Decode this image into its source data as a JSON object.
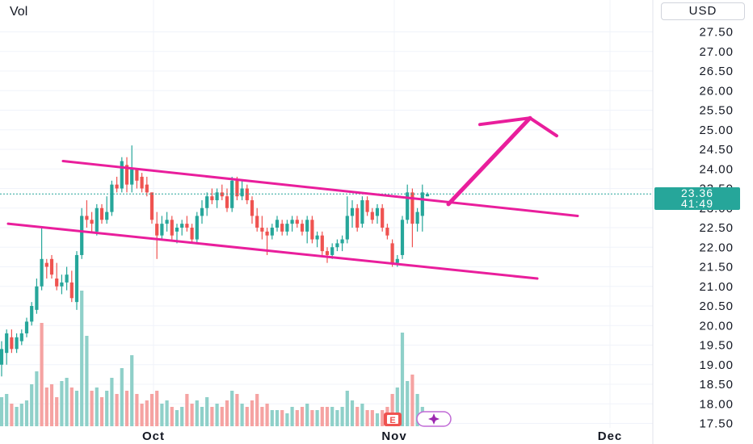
{
  "header": {
    "volume_label": "Vol",
    "currency": "USD"
  },
  "price_badge": {
    "price": "23.36",
    "countdown": "41:49"
  },
  "events": {
    "earnings_label": "E",
    "dividend_icon": "sparkle-icon"
  },
  "colors": {
    "up": "#26a69a",
    "down": "#ef5350",
    "vol_up": "#8fd0c9",
    "vol_down": "#f5a3a2",
    "channel": "#e91e9c",
    "grid": "#f0f3fa",
    "last_price_line": "#26a69a"
  },
  "chart_data": {
    "type": "candlestick",
    "ylim": [
      17.4,
      27.9
    ],
    "y_ticks": [
      "27.50",
      "27.00",
      "26.50",
      "26.00",
      "25.50",
      "25.00",
      "24.50",
      "24.00",
      "23.50",
      "23.00",
      "22.50",
      "22.00",
      "21.50",
      "21.00",
      "20.50",
      "20.00",
      "19.50",
      "19.00",
      "18.50",
      "18.00",
      "17.50"
    ],
    "x_ticks": [
      "Oct",
      "Nov",
      "Dec"
    ],
    "last_price": 23.36,
    "candles": [
      {
        "o": 19.0,
        "h": 19.6,
        "l": 18.7,
        "c": 19.4
      },
      {
        "o": 19.3,
        "h": 19.9,
        "l": 19.0,
        "c": 19.8
      },
      {
        "o": 19.7,
        "h": 19.9,
        "l": 19.3,
        "c": 19.4
      },
      {
        "o": 19.4,
        "h": 19.8,
        "l": 19.3,
        "c": 19.7
      },
      {
        "o": 19.6,
        "h": 19.9,
        "l": 19.5,
        "c": 19.8
      },
      {
        "o": 19.8,
        "h": 20.2,
        "l": 19.7,
        "c": 20.1
      },
      {
        "o": 20.1,
        "h": 20.6,
        "l": 20.0,
        "c": 20.5
      },
      {
        "o": 20.4,
        "h": 21.2,
        "l": 20.3,
        "c": 21.0
      },
      {
        "o": 21.0,
        "h": 22.5,
        "l": 20.9,
        "c": 21.7
      },
      {
        "o": 21.6,
        "h": 21.7,
        "l": 21.2,
        "c": 21.5
      },
      {
        "o": 21.7,
        "h": 21.8,
        "l": 21.2,
        "c": 21.3
      },
      {
        "o": 21.2,
        "h": 21.6,
        "l": 20.9,
        "c": 21.0
      },
      {
        "o": 21.0,
        "h": 21.3,
        "l": 20.8,
        "c": 21.1
      },
      {
        "o": 21.1,
        "h": 21.5,
        "l": 20.9,
        "c": 21.3
      },
      {
        "o": 21.1,
        "h": 21.4,
        "l": 20.6,
        "c": 20.7
      },
      {
        "o": 20.6,
        "h": 21.9,
        "l": 20.4,
        "c": 21.8
      },
      {
        "o": 21.8,
        "h": 23.0,
        "l": 21.7,
        "c": 22.8
      },
      {
        "o": 22.8,
        "h": 23.2,
        "l": 22.5,
        "c": 22.7
      },
      {
        "o": 22.7,
        "h": 22.9,
        "l": 22.4,
        "c": 22.6
      },
      {
        "o": 22.4,
        "h": 23.1,
        "l": 22.3,
        "c": 23.0
      },
      {
        "o": 23.0,
        "h": 23.1,
        "l": 22.6,
        "c": 22.7
      },
      {
        "o": 22.7,
        "h": 23.3,
        "l": 22.6,
        "c": 22.9
      },
      {
        "o": 22.9,
        "h": 23.7,
        "l": 22.8,
        "c": 23.6
      },
      {
        "o": 23.6,
        "h": 23.8,
        "l": 23.4,
        "c": 23.5
      },
      {
        "o": 23.5,
        "h": 24.3,
        "l": 23.4,
        "c": 24.2
      },
      {
        "o": 24.1,
        "h": 24.3,
        "l": 23.4,
        "c": 23.6
      },
      {
        "o": 23.6,
        "h": 24.6,
        "l": 23.4,
        "c": 24.0
      },
      {
        "o": 24.0,
        "h": 24.0,
        "l": 23.5,
        "c": 23.7
      },
      {
        "o": 23.8,
        "h": 23.9,
        "l": 23.4,
        "c": 23.5
      },
      {
        "o": 23.6,
        "h": 23.8,
        "l": 23.3,
        "c": 23.4
      },
      {
        "o": 23.4,
        "h": 23.4,
        "l": 22.6,
        "c": 22.7
      },
      {
        "o": 22.6,
        "h": 22.9,
        "l": 21.7,
        "c": 22.3
      },
      {
        "o": 22.3,
        "h": 22.8,
        "l": 22.2,
        "c": 22.6
      },
      {
        "o": 22.6,
        "h": 22.9,
        "l": 22.4,
        "c": 22.7
      },
      {
        "o": 22.7,
        "h": 22.8,
        "l": 22.2,
        "c": 22.3
      },
      {
        "o": 22.4,
        "h": 22.6,
        "l": 22.1,
        "c": 22.5
      },
      {
        "o": 22.5,
        "h": 22.7,
        "l": 22.3,
        "c": 22.6
      },
      {
        "o": 22.6,
        "h": 22.8,
        "l": 22.4,
        "c": 22.5
      },
      {
        "o": 22.5,
        "h": 22.6,
        "l": 22.1,
        "c": 22.2
      },
      {
        "o": 22.2,
        "h": 22.9,
        "l": 22.1,
        "c": 22.8
      },
      {
        "o": 22.8,
        "h": 23.2,
        "l": 22.6,
        "c": 23.0
      },
      {
        "o": 23.0,
        "h": 23.4,
        "l": 22.8,
        "c": 23.3
      },
      {
        "o": 23.3,
        "h": 23.5,
        "l": 23.1,
        "c": 23.2
      },
      {
        "o": 23.2,
        "h": 23.5,
        "l": 23.0,
        "c": 23.4
      },
      {
        "o": 23.4,
        "h": 23.6,
        "l": 23.2,
        "c": 23.3
      },
      {
        "o": 23.3,
        "h": 23.5,
        "l": 22.9,
        "c": 23.0
      },
      {
        "o": 23.0,
        "h": 23.8,
        "l": 22.9,
        "c": 23.7
      },
      {
        "o": 23.7,
        "h": 23.8,
        "l": 23.2,
        "c": 23.3
      },
      {
        "o": 23.3,
        "h": 23.7,
        "l": 23.2,
        "c": 23.5
      },
      {
        "o": 23.5,
        "h": 23.6,
        "l": 23.1,
        "c": 23.2
      },
      {
        "o": 23.2,
        "h": 23.3,
        "l": 22.6,
        "c": 22.8
      },
      {
        "o": 22.8,
        "h": 23.0,
        "l": 22.4,
        "c": 22.5
      },
      {
        "o": 22.5,
        "h": 22.8,
        "l": 22.2,
        "c": 22.4
      },
      {
        "o": 22.4,
        "h": 22.5,
        "l": 21.8,
        "c": 22.3
      },
      {
        "o": 22.3,
        "h": 22.6,
        "l": 22.2,
        "c": 22.5
      },
      {
        "o": 22.5,
        "h": 22.8,
        "l": 22.4,
        "c": 22.7
      },
      {
        "o": 22.6,
        "h": 22.7,
        "l": 22.3,
        "c": 22.4
      },
      {
        "o": 22.4,
        "h": 22.7,
        "l": 22.3,
        "c": 22.6
      },
      {
        "o": 22.6,
        "h": 22.8,
        "l": 22.4,
        "c": 22.7
      },
      {
        "o": 22.7,
        "h": 22.8,
        "l": 22.5,
        "c": 22.6
      },
      {
        "o": 22.6,
        "h": 22.7,
        "l": 22.3,
        "c": 22.4
      },
      {
        "o": 22.4,
        "h": 22.8,
        "l": 22.1,
        "c": 22.7
      },
      {
        "o": 22.7,
        "h": 22.8,
        "l": 22.1,
        "c": 22.2
      },
      {
        "o": 22.2,
        "h": 22.4,
        "l": 22.0,
        "c": 22.3
      },
      {
        "o": 22.3,
        "h": 22.4,
        "l": 21.8,
        "c": 21.9
      },
      {
        "o": 21.9,
        "h": 22.0,
        "l": 21.6,
        "c": 21.8
      },
      {
        "o": 21.8,
        "h": 22.1,
        "l": 21.7,
        "c": 22.0
      },
      {
        "o": 22.0,
        "h": 22.2,
        "l": 21.9,
        "c": 22.1
      },
      {
        "o": 22.1,
        "h": 22.3,
        "l": 21.9,
        "c": 22.2
      },
      {
        "o": 22.2,
        "h": 23.3,
        "l": 22.1,
        "c": 22.8
      },
      {
        "o": 22.8,
        "h": 23.2,
        "l": 22.5,
        "c": 23.0
      },
      {
        "o": 23.0,
        "h": 23.1,
        "l": 22.4,
        "c": 22.5
      },
      {
        "o": 22.6,
        "h": 23.3,
        "l": 22.5,
        "c": 23.2
      },
      {
        "o": 23.2,
        "h": 23.3,
        "l": 22.8,
        "c": 22.9
      },
      {
        "o": 22.9,
        "h": 23.0,
        "l": 22.6,
        "c": 22.7
      },
      {
        "o": 22.8,
        "h": 23.1,
        "l": 22.6,
        "c": 23.0
      },
      {
        "o": 23.0,
        "h": 23.1,
        "l": 22.4,
        "c": 22.5
      },
      {
        "o": 22.5,
        "h": 22.6,
        "l": 22.2,
        "c": 22.3
      },
      {
        "o": 22.1,
        "h": 22.2,
        "l": 21.5,
        "c": 21.6
      },
      {
        "o": 21.6,
        "h": 21.8,
        "l": 21.5,
        "c": 21.7
      },
      {
        "o": 21.8,
        "h": 22.8,
        "l": 21.7,
        "c": 22.7
      },
      {
        "o": 22.7,
        "h": 23.6,
        "l": 22.6,
        "c": 23.4
      },
      {
        "o": 23.4,
        "h": 23.5,
        "l": 22.0,
        "c": 22.6
      },
      {
        "o": 22.6,
        "h": 23.0,
        "l": 22.4,
        "c": 22.9
      },
      {
        "o": 22.8,
        "h": 23.6,
        "l": 22.4,
        "c": 23.4
      },
      {
        "o": 23.3,
        "h": 23.4,
        "l": 23.3,
        "c": 23.36
      }
    ],
    "volume": [
      {
        "v": 0.45,
        "up": true
      },
      {
        "v": 0.5,
        "up": true
      },
      {
        "v": 0.35,
        "up": false
      },
      {
        "v": 0.3,
        "up": true
      },
      {
        "v": 0.35,
        "up": true
      },
      {
        "v": 0.4,
        "up": true
      },
      {
        "v": 0.65,
        "up": true
      },
      {
        "v": 0.85,
        "up": true
      },
      {
        "v": 1.6,
        "up": false
      },
      {
        "v": 0.6,
        "up": false
      },
      {
        "v": 0.65,
        "up": false
      },
      {
        "v": 0.45,
        "up": false
      },
      {
        "v": 0.7,
        "up": true
      },
      {
        "v": 0.75,
        "up": true
      },
      {
        "v": 0.6,
        "up": false
      },
      {
        "v": 0.55,
        "up": true
      },
      {
        "v": 2.1,
        "up": true
      },
      {
        "v": 1.4,
        "up": true
      },
      {
        "v": 0.55,
        "up": false
      },
      {
        "v": 0.6,
        "up": true
      },
      {
        "v": 0.45,
        "up": false
      },
      {
        "v": 0.55,
        "up": true
      },
      {
        "v": 0.75,
        "up": true
      },
      {
        "v": 0.5,
        "up": false
      },
      {
        "v": 0.9,
        "up": true
      },
      {
        "v": 0.55,
        "up": false
      },
      {
        "v": 1.1,
        "up": true
      },
      {
        "v": 0.5,
        "up": false
      },
      {
        "v": 0.35,
        "up": false
      },
      {
        "v": 0.4,
        "up": false
      },
      {
        "v": 0.5,
        "up": false
      },
      {
        "v": 0.55,
        "up": false
      },
      {
        "v": 0.35,
        "up": true
      },
      {
        "v": 0.4,
        "up": true
      },
      {
        "v": 0.3,
        "up": false
      },
      {
        "v": 0.25,
        "up": true
      },
      {
        "v": 0.3,
        "up": true
      },
      {
        "v": 0.5,
        "up": false
      },
      {
        "v": 0.35,
        "up": false
      },
      {
        "v": 0.4,
        "up": true
      },
      {
        "v": 0.3,
        "up": true
      },
      {
        "v": 0.45,
        "up": true
      },
      {
        "v": 0.3,
        "up": false
      },
      {
        "v": 0.35,
        "up": true
      },
      {
        "v": 0.3,
        "up": false
      },
      {
        "v": 0.4,
        "up": false
      },
      {
        "v": 0.55,
        "up": true
      },
      {
        "v": 0.5,
        "up": false
      },
      {
        "v": 0.35,
        "up": true
      },
      {
        "v": 0.3,
        "up": false
      },
      {
        "v": 0.4,
        "up": false
      },
      {
        "v": 0.5,
        "up": false
      },
      {
        "v": 0.3,
        "up": false
      },
      {
        "v": 0.35,
        "up": false
      },
      {
        "v": 0.25,
        "up": true
      },
      {
        "v": 0.25,
        "up": true
      },
      {
        "v": 0.25,
        "up": false
      },
      {
        "v": 0.2,
        "up": true
      },
      {
        "v": 0.3,
        "up": true
      },
      {
        "v": 0.25,
        "up": false
      },
      {
        "v": 0.3,
        "up": false
      },
      {
        "v": 0.35,
        "up": true
      },
      {
        "v": 0.25,
        "up": false
      },
      {
        "v": 0.25,
        "up": true
      },
      {
        "v": 0.3,
        "up": false
      },
      {
        "v": 0.3,
        "up": false
      },
      {
        "v": 0.3,
        "up": true
      },
      {
        "v": 0.25,
        "up": true
      },
      {
        "v": 0.3,
        "up": true
      },
      {
        "v": 0.55,
        "up": true
      },
      {
        "v": 0.4,
        "up": true
      },
      {
        "v": 0.3,
        "up": false
      },
      {
        "v": 0.35,
        "up": true
      },
      {
        "v": 0.25,
        "up": false
      },
      {
        "v": 0.25,
        "up": false
      },
      {
        "v": 0.2,
        "up": true
      },
      {
        "v": 0.25,
        "up": false
      },
      {
        "v": 0.3,
        "up": false
      },
      {
        "v": 0.5,
        "up": false
      },
      {
        "v": 0.6,
        "up": true
      },
      {
        "v": 1.45,
        "up": true
      },
      {
        "v": 0.7,
        "up": true
      },
      {
        "v": 0.8,
        "up": false
      },
      {
        "v": 0.5,
        "up": true
      },
      {
        "v": 0.3,
        "up": true
      },
      {
        "v": 0.2,
        "up": true
      }
    ],
    "channel_upper": [
      [
        0,
        24.2
      ],
      [
        1,
        22.8
      ]
    ],
    "channel_lower": [
      [
        0,
        22.6
      ],
      [
        1,
        21.2
      ]
    ],
    "projection_arrow": {
      "from": 23.1,
      "to": 25.3
    }
  }
}
